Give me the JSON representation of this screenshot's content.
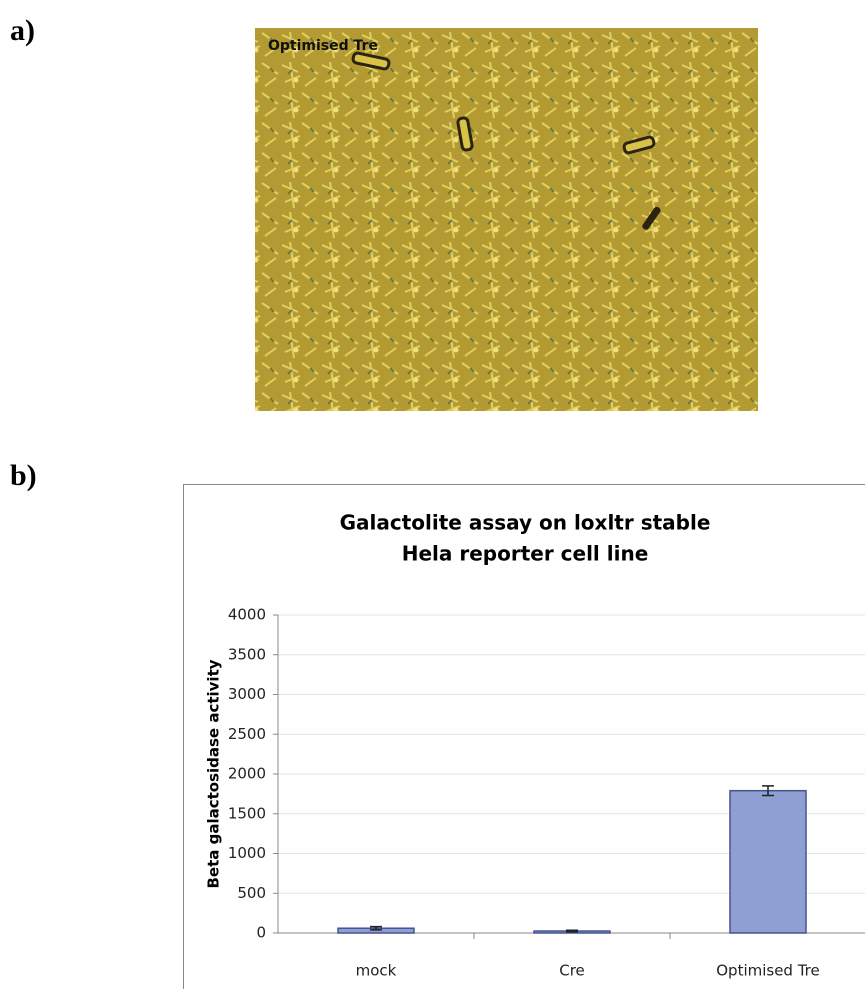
{
  "panel_labels": [
    "a)",
    "b)"
  ],
  "image_label": "Optimised Tre",
  "chart_data": {
    "type": "bar",
    "title": [
      "Galactolite assay on loxltr stable",
      "Hela reporter cell line"
    ],
    "y_label": "Beta galactosidase activity",
    "categories": [
      "mock",
      "Cre",
      "Optimised Tre"
    ],
    "values": [
      60,
      25,
      1790
    ],
    "errors": [
      20,
      10,
      60
    ],
    "color": "#8f9fd3",
    "ylim": [
      0,
      4000
    ],
    "yticks": [
      0,
      500,
      1000,
      1500,
      2000,
      2500,
      3000,
      3500,
      4000
    ],
    "grid": true
  }
}
